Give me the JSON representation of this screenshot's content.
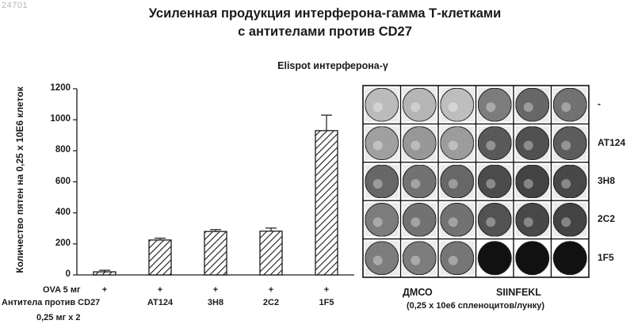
{
  "corner_id": "24701",
  "title_line1": "Усиленная продукция интерферона-гамма Т-клетками",
  "title_line2": "с антителами против CD27",
  "subtitle": "Elispot интерферона-γ",
  "chart_data": {
    "type": "bar",
    "ylabel": "Количество пятен на 0,25 x 10E6 клеток",
    "ylim": [
      0,
      1200
    ],
    "yticks": [
      "0",
      "200",
      "400",
      "600",
      "800",
      "1000",
      "1200"
    ],
    "categories": [
      "",
      "AT124",
      "3H8",
      "2C2",
      "1F5"
    ],
    "values": [
      20,
      225,
      280,
      282,
      930
    ],
    "errors": [
      10,
      12,
      12,
      20,
      100
    ],
    "grid": false,
    "bar_pattern": "diagonal-hatch"
  },
  "table": {
    "row1_label": "OVA 5 мг",
    "row1_values": [
      "+",
      "+",
      "+",
      "+",
      "+"
    ],
    "row2_label": "Антитела против CD27",
    "row2_label_line2": "0,25 мг x 2",
    "row2_values": [
      "",
      "AT124",
      "3H8",
      "2C2",
      "1F5"
    ]
  },
  "wells": {
    "row_labels": [
      "-",
      "AT124",
      "3H8",
      "2C2",
      "1F5"
    ],
    "group_dmso": "ДМСО",
    "group_siinfekl": "SIINFEKL",
    "caption": "(0,25 x 10e6 спленоцитов/лунку)",
    "density": [
      [
        0.15,
        0.18,
        0.14,
        0.45,
        0.55,
        0.5
      ],
      [
        0.28,
        0.32,
        0.3,
        0.62,
        0.66,
        0.6
      ],
      [
        0.55,
        0.5,
        0.55,
        0.68,
        0.72,
        0.7
      ],
      [
        0.45,
        0.5,
        0.5,
        0.65,
        0.7,
        0.72
      ],
      [
        0.45,
        0.45,
        0.48,
        0.97,
        0.97,
        0.97
      ]
    ]
  }
}
